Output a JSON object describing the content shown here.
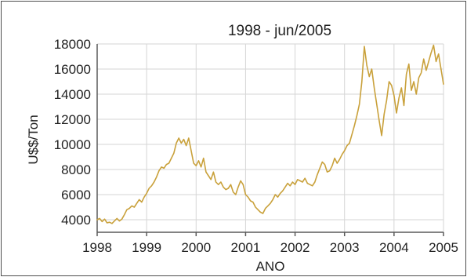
{
  "chart_data": {
    "type": "line",
    "title": "1998 - jun/2005",
    "xlabel": "ANO",
    "ylabel": "U$$/Ton",
    "xlim": [
      1998,
      2005
    ],
    "ylim": [
      3000,
      18000
    ],
    "x_ticks": [
      "1998",
      "1999",
      "2000",
      "2001",
      "2002",
      "2003",
      "2004",
      "2005"
    ],
    "y_ticks": [
      "4000",
      "6000",
      "8000",
      "10000",
      "12000",
      "14000",
      "16000",
      "18000"
    ],
    "grid": true,
    "legend": "none",
    "colors": {
      "line": "#c9a13b",
      "grid": "#d6d6d6",
      "axis": "#5a5a5a",
      "text": "#222222"
    },
    "series": [
      {
        "x": [
          1998.0,
          1998.05,
          1998.1,
          1998.15,
          1998.2,
          1998.25,
          1998.3,
          1998.35,
          1998.4,
          1998.45,
          1998.5,
          1998.55,
          1998.6,
          1998.65,
          1998.7,
          1998.75,
          1998.8,
          1998.85,
          1998.9,
          1998.95,
          1999.0,
          1999.05,
          1999.1,
          1999.15,
          1999.2,
          1999.25,
          1999.3,
          1999.35,
          1999.4,
          1999.45,
          1999.5,
          1999.55,
          1999.6,
          1999.65,
          1999.7,
          1999.75,
          1999.8,
          1999.85,
          1999.9,
          1999.95,
          2000.0,
          2000.05,
          2000.1,
          2000.15,
          2000.2,
          2000.25,
          2000.3,
          2000.35,
          2000.4,
          2000.45,
          2000.5,
          2000.55,
          2000.6,
          2000.65,
          2000.7,
          2000.75,
          2000.8,
          2000.85,
          2000.9,
          2000.95,
          2001.0,
          2001.05,
          2001.1,
          2001.15,
          2001.2,
          2001.25,
          2001.3,
          2001.35,
          2001.4,
          2001.45,
          2001.5,
          2001.55,
          2001.6,
          2001.65,
          2001.7,
          2001.75,
          2001.8,
          2001.85,
          2001.9,
          2001.95,
          2002.0,
          2002.05,
          2002.1,
          2002.15,
          2002.2,
          2002.25,
          2002.3,
          2002.35,
          2002.4,
          2002.45,
          2002.5,
          2002.55,
          2002.6,
          2002.65,
          2002.7,
          2002.75,
          2002.8,
          2002.85,
          2002.9,
          2002.95,
          2003.0,
          2003.05,
          2003.1,
          2003.15,
          2003.2,
          2003.25,
          2003.3,
          2003.35,
          2003.4,
          2003.45,
          2003.5,
          2003.55,
          2003.6,
          2003.65,
          2003.7,
          2003.75,
          2003.8,
          2003.85,
          2003.9,
          2003.95,
          2004.0,
          2004.05,
          2004.1,
          2004.15,
          2004.2,
          2004.25,
          2004.3,
          2004.35,
          2004.4,
          2004.45,
          2004.5,
          2004.55,
          2004.6,
          2004.65,
          2004.7,
          2004.75,
          2004.8,
          2004.85,
          2004.9,
          2004.95,
          2005.0
        ],
        "y": [
          4000,
          4100,
          3850,
          4050,
          3750,
          3800,
          3700,
          3900,
          4100,
          3900,
          4050,
          4400,
          4800,
          4900,
          5100,
          5000,
          5300,
          5600,
          5400,
          5800,
          6100,
          6500,
          6700,
          7000,
          7400,
          7900,
          8200,
          8100,
          8400,
          8500,
          8900,
          9300,
          10100,
          10500,
          10100,
          10400,
          9900,
          10500,
          9500,
          8500,
          8300,
          8700,
          8200,
          8900,
          7800,
          7500,
          7200,
          7800,
          7000,
          6800,
          7000,
          6600,
          6400,
          6500,
          6800,
          6200,
          6000,
          6600,
          7100,
          6800,
          6000,
          5800,
          5500,
          5400,
          5000,
          4800,
          4600,
          4500,
          4900,
          5100,
          5300,
          5600,
          6000,
          5800,
          6100,
          6300,
          6600,
          6900,
          6700,
          7000,
          6800,
          7200,
          7100,
          7000,
          7300,
          6900,
          6800,
          6700,
          7000,
          7600,
          8100,
          8600,
          8400,
          7800,
          7900,
          8300,
          8900,
          8500,
          8800,
          9200,
          9500,
          9900,
          10100,
          10800,
          11500,
          12300,
          13200,
          15000,
          17800,
          16300,
          15400,
          16000,
          14500,
          13200,
          11900,
          10700,
          12400,
          13500,
          15000,
          14700,
          13900,
          12500,
          13700,
          14500,
          13100,
          15600,
          16400,
          14300,
          15000,
          14000,
          15300,
          15700,
          16800,
          15900,
          16600,
          17300,
          17900,
          16600,
          17200,
          16000,
          14800
        ]
      }
    ]
  }
}
